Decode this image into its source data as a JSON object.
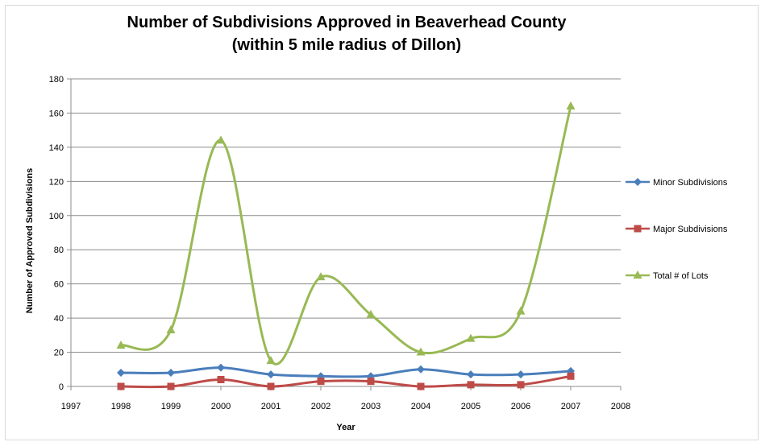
{
  "chart_data": {
    "type": "line",
    "title": "Number of Subdivisions Approved in Beaverhead County",
    "subtitle": "(within 5 mile radius of Dillon)",
    "xlabel": "Year",
    "ylabel": "Number of Approved Subdivisions",
    "xlim": [
      1997,
      2008
    ],
    "ylim": [
      0,
      180
    ],
    "x_ticks": [
      "1997",
      "1998",
      "1999",
      "2000",
      "2001",
      "2002",
      "2003",
      "2004",
      "2005",
      "2006",
      "2007",
      "2008"
    ],
    "y_ticks": [
      "0",
      "20",
      "40",
      "60",
      "80",
      "100",
      "120",
      "140",
      "160",
      "180"
    ],
    "grid": "horizontal",
    "smoothed": true,
    "legend_position": "right",
    "x": [
      1998,
      1999,
      2000,
      2001,
      2002,
      2003,
      2004,
      2005,
      2006,
      2007
    ],
    "series": [
      {
        "name": "Minor Subdivisions",
        "color": "#4a7ebb",
        "marker": "diamond",
        "values": [
          8,
          8,
          11,
          7,
          6,
          6,
          10,
          7,
          7,
          9
        ]
      },
      {
        "name": "Major Subdivisions",
        "color": "#be4b48",
        "marker": "square",
        "values": [
          0,
          0,
          4,
          0,
          3,
          3,
          0,
          1,
          1,
          6
        ]
      },
      {
        "name": "Total # of Lots",
        "color": "#98b954",
        "marker": "triangle",
        "values": [
          24,
          33,
          144,
          15,
          64,
          42,
          20,
          28,
          44,
          164
        ]
      }
    ]
  }
}
